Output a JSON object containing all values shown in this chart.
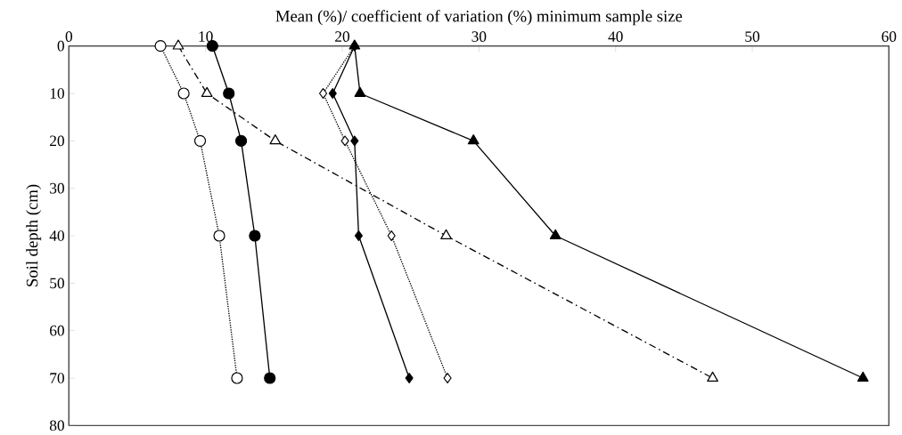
{
  "chart_data": {
    "type": "line",
    "xlabel": "Mean (%)/ coefficient of variation (%) minimum sample size",
    "ylabel": "Soil depth (cm)",
    "xlim": [
      0,
      60
    ],
    "xticks": [
      0,
      10,
      20,
      30,
      40,
      50,
      60
    ],
    "ylim": [
      80,
      0
    ],
    "yticks": [
      0,
      10,
      20,
      30,
      40,
      50,
      60,
      70,
      80
    ],
    "grid": false,
    "series": [
      {
        "color": "#000000",
        "marker": "circle",
        "line_style": "dotted",
        "x": [
          6.7,
          8.4,
          9.6,
          11.0,
          12.3
        ],
        "values": [
          0,
          10,
          20,
          40,
          70
        ]
      },
      {
        "color": "#000000",
        "marker": "circle",
        "line_style": "solid",
        "x": [
          10.5,
          11.7,
          12.6,
          13.6,
          14.7
        ],
        "values": [
          0,
          10,
          20,
          40,
          70
        ]
      },
      {
        "color": "#000000",
        "marker": "triangle",
        "line_style": "dashdot",
        "x": [
          8.0,
          10.1,
          15.1,
          27.6,
          47.1
        ],
        "values": [
          0,
          10,
          20,
          40,
          70
        ]
      },
      {
        "color": "#000000",
        "marker": "triangle",
        "line_style": "solid",
        "x": [
          20.9,
          21.3,
          29.6,
          35.6,
          58.1
        ],
        "values": [
          0,
          10,
          20,
          40,
          70
        ]
      },
      {
        "color": "#000000",
        "marker": "diamond",
        "line_style": "dotted",
        "x": [
          20.9,
          18.6,
          20.2,
          23.6,
          27.7
        ],
        "values": [
          0,
          10,
          20,
          40,
          70
        ]
      },
      {
        "color": "#000000",
        "marker": "diamond",
        "line_style": "solid",
        "x": [
          20.9,
          19.3,
          20.9,
          21.2,
          24.9
        ],
        "values": [
          0,
          10,
          20,
          40,
          70
        ]
      }
    ]
  }
}
